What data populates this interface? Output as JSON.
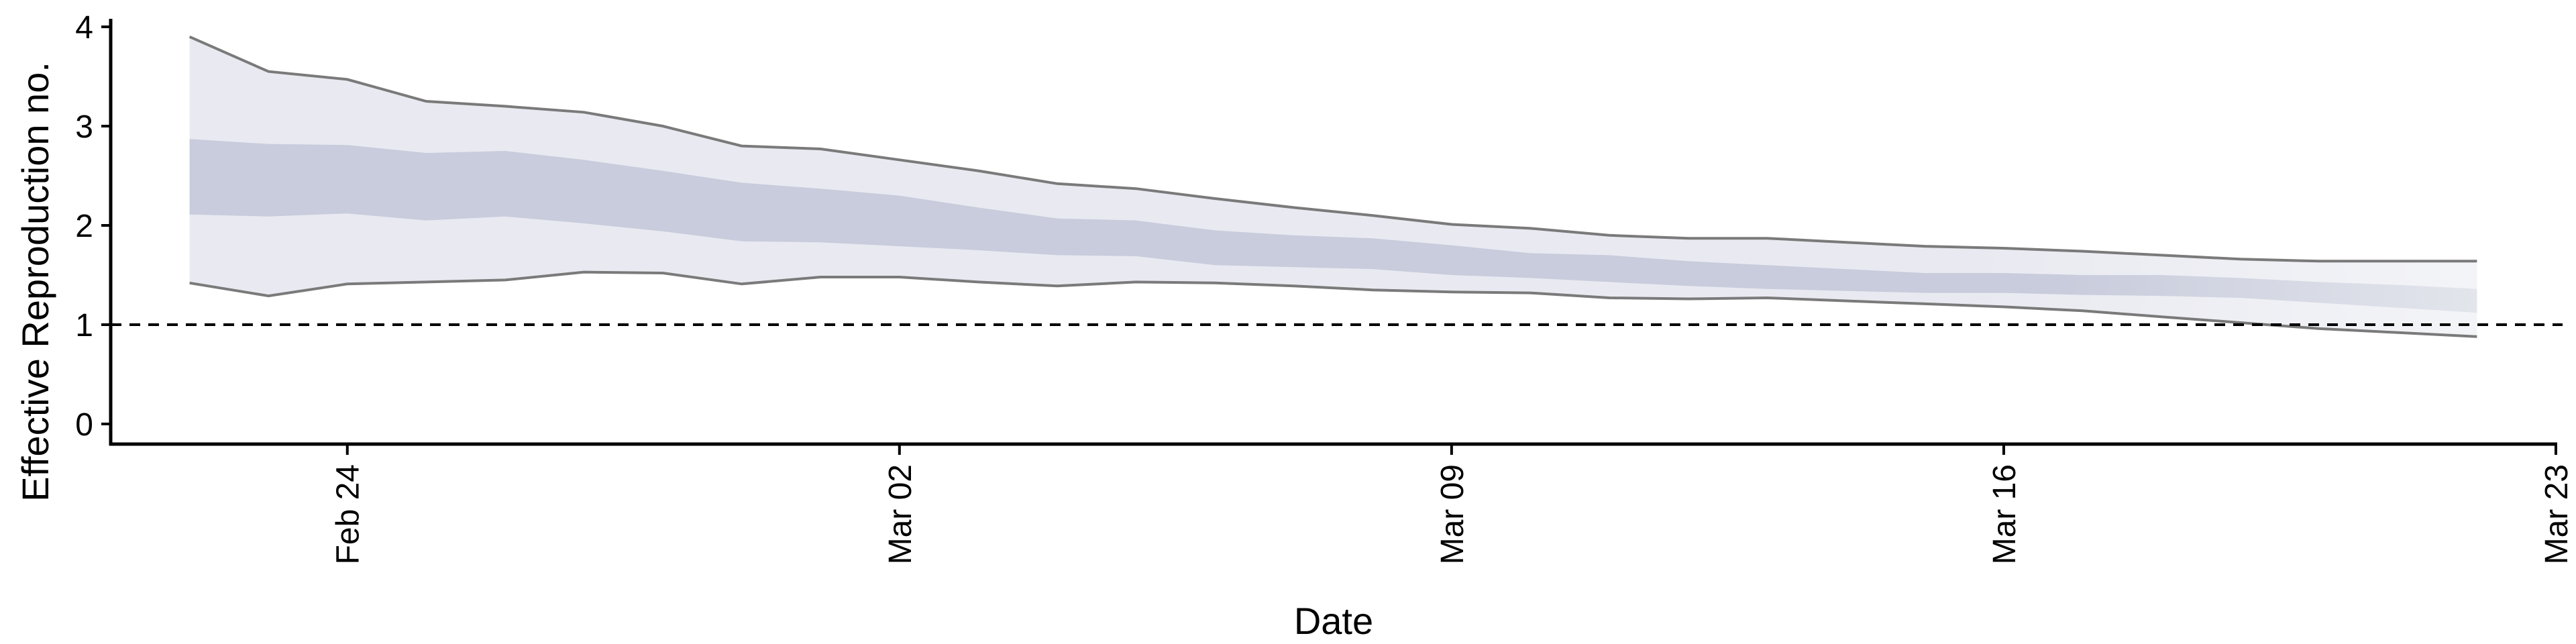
{
  "chart_data": {
    "type": "area",
    "title": "",
    "xlabel": "Date",
    "ylabel": "Effective Reproduction no.",
    "ylim": [
      0,
      4
    ],
    "yticks": [
      0,
      1,
      2,
      3,
      4
    ],
    "x_ticks": [
      {
        "date": "2020-02-24",
        "label": "Feb 24"
      },
      {
        "date": "2020-03-02",
        "label": "Mar 02"
      },
      {
        "date": "2020-03-09",
        "label": "Mar 09"
      },
      {
        "date": "2020-03-16",
        "label": "Mar 16"
      },
      {
        "date": "2020-03-23",
        "label": "Mar 23"
      }
    ],
    "xlim": [
      "2020-02-21",
      "2020-03-23"
    ],
    "reference_line": {
      "y": 1,
      "style": "dashed"
    },
    "colors": {
      "outer_band": "#e9eaf1",
      "inner_band": "#c8ccdc",
      "bound_line": "#7a7a7a",
      "reference": "#000000"
    },
    "series": [
      {
        "dates": [
          "2020-02-22",
          "2020-02-23",
          "2020-02-24",
          "2020-02-25",
          "2020-02-26",
          "2020-02-27",
          "2020-02-28",
          "2020-02-29",
          "2020-03-01",
          "2020-03-02",
          "2020-03-03",
          "2020-03-04",
          "2020-03-05",
          "2020-03-06",
          "2020-03-07",
          "2020-03-08",
          "2020-03-09",
          "2020-03-10",
          "2020-03-11",
          "2020-03-12",
          "2020-03-13",
          "2020-03-14",
          "2020-03-15",
          "2020-03-16",
          "2020-03-17",
          "2020-03-18",
          "2020-03-19",
          "2020-03-20",
          "2020-03-21",
          "2020-03-22"
        ],
        "outer_upper": [
          3.9,
          3.55,
          3.47,
          3.25,
          3.2,
          3.14,
          3.0,
          2.8,
          2.77,
          2.66,
          2.55,
          2.42,
          2.37,
          2.27,
          2.18,
          2.1,
          2.01,
          1.97,
          1.9,
          1.87,
          1.87,
          1.83,
          1.79,
          1.77,
          1.74,
          1.7,
          1.66,
          1.64,
          1.64,
          1.64
        ],
        "inner_upper": [
          2.87,
          2.82,
          2.81,
          2.73,
          2.75,
          2.66,
          2.55,
          2.43,
          2.37,
          2.3,
          2.18,
          2.07,
          2.05,
          1.95,
          1.9,
          1.87,
          1.8,
          1.72,
          1.7,
          1.64,
          1.6,
          1.56,
          1.52,
          1.52,
          1.5,
          1.5,
          1.47,
          1.43,
          1.4,
          1.36
        ],
        "inner_lower": [
          2.11,
          2.09,
          2.12,
          2.05,
          2.09,
          2.02,
          1.94,
          1.84,
          1.83,
          1.79,
          1.75,
          1.7,
          1.69,
          1.6,
          1.58,
          1.56,
          1.5,
          1.47,
          1.43,
          1.39,
          1.36,
          1.34,
          1.32,
          1.32,
          1.3,
          1.29,
          1.27,
          1.22,
          1.17,
          1.12
        ],
        "outer_lower": [
          1.42,
          1.29,
          1.41,
          1.43,
          1.45,
          1.53,
          1.52,
          1.41,
          1.48,
          1.48,
          1.43,
          1.39,
          1.43,
          1.42,
          1.39,
          1.35,
          1.33,
          1.32,
          1.27,
          1.26,
          1.27,
          1.24,
          1.21,
          1.18,
          1.14,
          1.08,
          1.02,
          0.96,
          0.92,
          0.88
        ]
      }
    ]
  }
}
